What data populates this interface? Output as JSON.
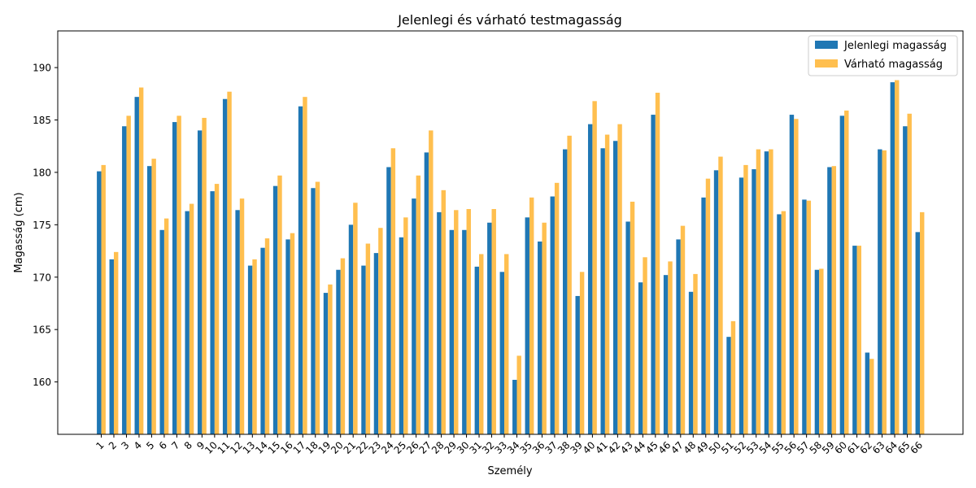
{
  "chart_data": {
    "type": "bar",
    "title": "Jelenlegi és várható testmagasság",
    "xlabel": "Személy",
    "ylabel": "Magasság (cm)",
    "ylim": [
      155,
      193.5
    ],
    "yticks": [
      160,
      165,
      170,
      175,
      180,
      185,
      190
    ],
    "grid": false,
    "legend_position": "top-right",
    "categories": [
      "1",
      "2",
      "3",
      "4",
      "5",
      "6",
      "7",
      "8",
      "9",
      "10",
      "11",
      "12",
      "13",
      "14",
      "15",
      "16",
      "17",
      "18",
      "19",
      "20",
      "21",
      "22",
      "23",
      "24",
      "25",
      "26",
      "27",
      "28",
      "29",
      "30",
      "31",
      "32",
      "33",
      "34",
      "35",
      "36",
      "37",
      "38",
      "39",
      "40",
      "41",
      "42",
      "43",
      "44",
      "45",
      "46",
      "47",
      "48",
      "49",
      "50",
      "51",
      "52",
      "53",
      "54",
      "55",
      "56",
      "57",
      "58",
      "59",
      "60",
      "61",
      "62",
      "63",
      "64",
      "65",
      "66"
    ],
    "series": [
      {
        "name": "Jelenlegi magasság",
        "color": "#1f77b4",
        "values": [
          180.1,
          171.7,
          184.4,
          187.2,
          180.6,
          174.5,
          184.8,
          176.3,
          184.0,
          178.2,
          187.0,
          176.4,
          171.1,
          172.8,
          178.7,
          173.6,
          186.3,
          178.5,
          168.5,
          170.7,
          175.0,
          171.1,
          172.3,
          180.5,
          173.8,
          177.5,
          181.9,
          176.2,
          174.5,
          174.5,
          171.0,
          175.2,
          170.5,
          160.2,
          175.7,
          173.4,
          177.7,
          182.2,
          168.2,
          184.6,
          182.3,
          183.0,
          175.3,
          169.5,
          185.5,
          170.2,
          173.6,
          168.6,
          177.6,
          180.2,
          164.3,
          179.5,
          180.3,
          182.0,
          176.0,
          185.5,
          177.4,
          170.7,
          180.5,
          185.4,
          173.0,
          162.8,
          182.2,
          188.6,
          184.4,
          174.3
        ]
      },
      {
        "name": "Várható magasság",
        "color": "#ffbf4f",
        "values": [
          180.7,
          172.4,
          185.4,
          188.1,
          181.3,
          175.6,
          185.4,
          177.0,
          185.2,
          178.9,
          187.7,
          177.5,
          171.7,
          173.7,
          179.7,
          174.2,
          187.2,
          179.1,
          169.3,
          171.8,
          177.1,
          173.2,
          174.7,
          182.3,
          175.7,
          179.7,
          184.0,
          178.3,
          176.4,
          176.5,
          172.2,
          176.5,
          172.2,
          162.5,
          177.6,
          175.2,
          179.0,
          183.5,
          170.5,
          186.8,
          183.6,
          184.6,
          177.2,
          171.9,
          187.6,
          171.5,
          174.9,
          170.3,
          179.4,
          181.5,
          165.8,
          180.7,
          182.2,
          182.2,
          176.3,
          185.1,
          177.3,
          170.8,
          180.6,
          185.9,
          173.0,
          162.2,
          182.1,
          188.8,
          185.6,
          176.2
        ]
      }
    ]
  }
}
